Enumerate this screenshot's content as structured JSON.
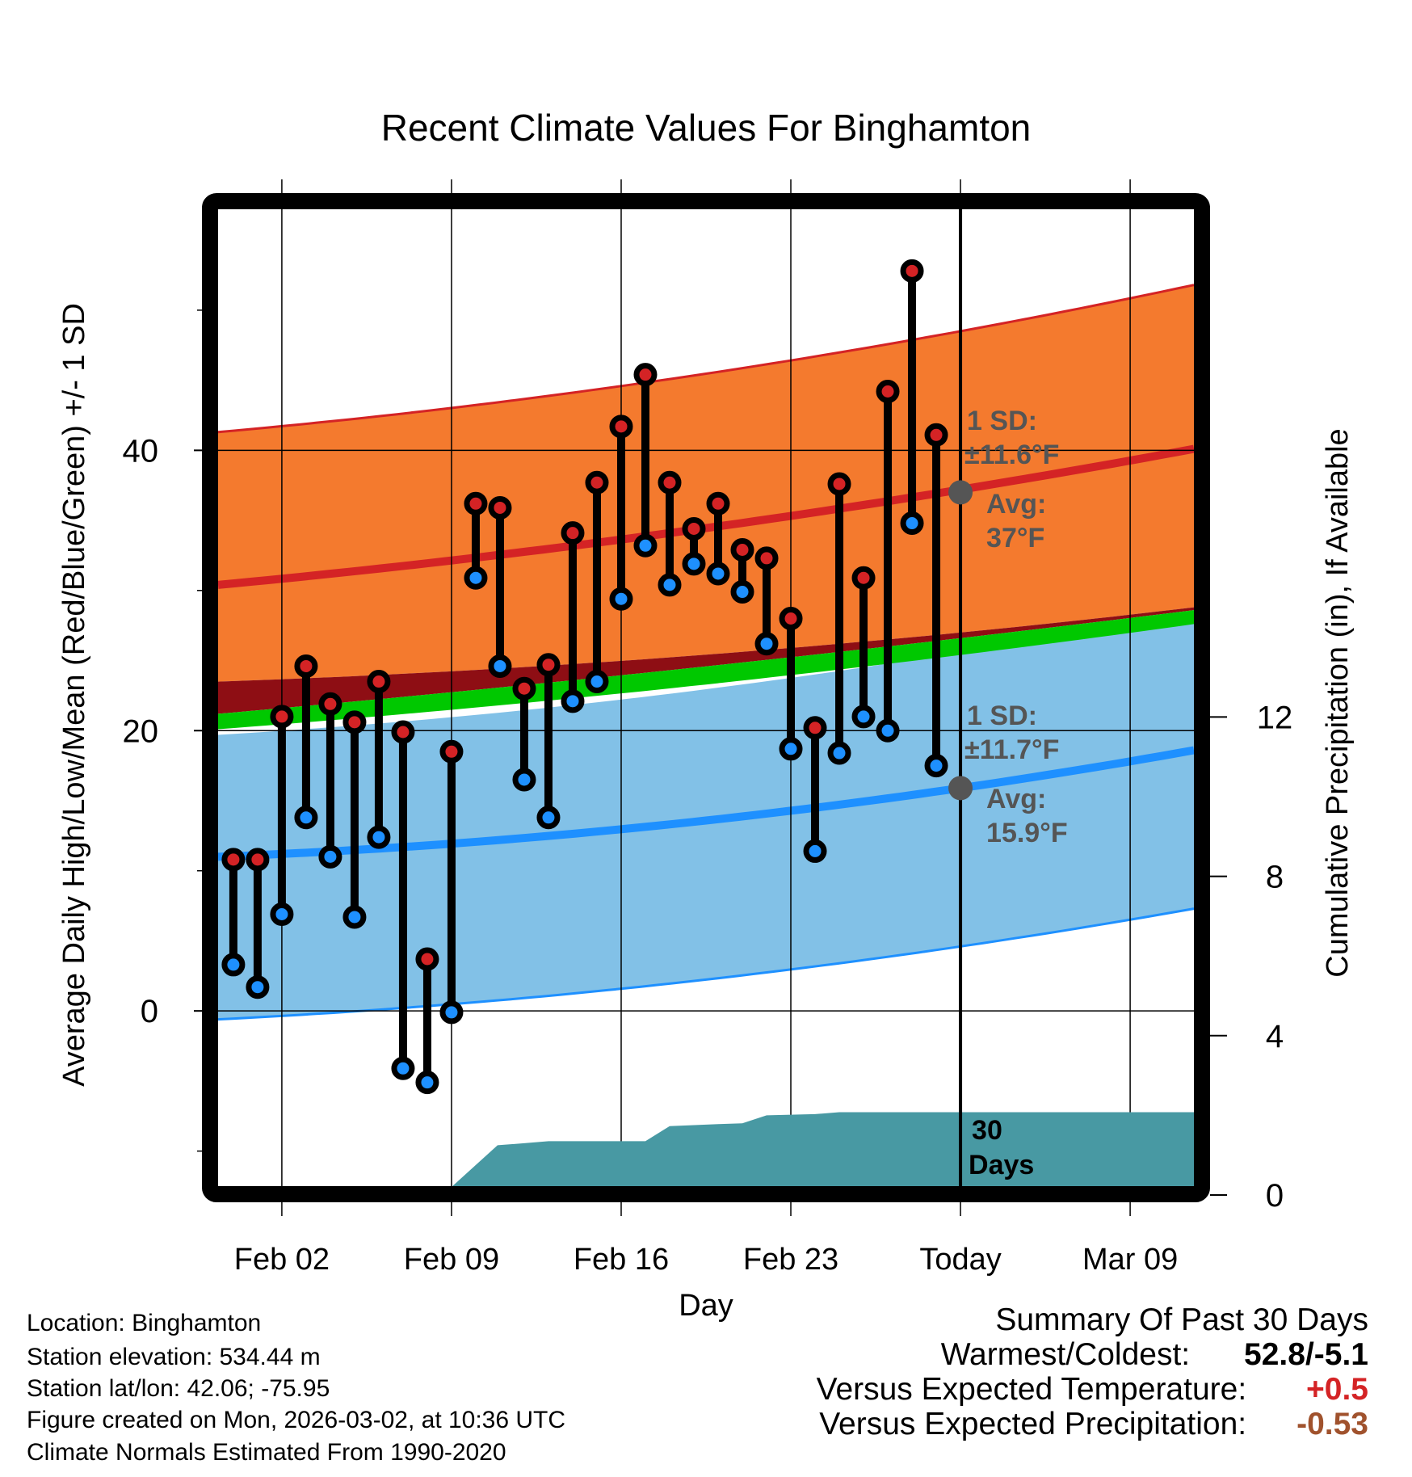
{
  "chart_data": {
    "type": "line",
    "title": "Recent Climate Values For Binghamton",
    "xlabel": "Day",
    "ylabel": "Average Daily High/Low/Mean (Red/Blue/Green) +/- 1 SD",
    "ylabel_right": "Cumulative Precipitation (in), If Available",
    "x_tick_labels": [
      "Feb 02",
      "Feb 09",
      "Feb 16",
      "Feb 23",
      "Today",
      "Mar 09"
    ],
    "x_tick_days": [
      0,
      7,
      14,
      21,
      28,
      35
    ],
    "xlim_days": [
      -2.63,
      37.63
    ],
    "y_ticks": [
      0,
      20,
      40
    ],
    "y_minor_ticks": [
      -10,
      10,
      30,
      50
    ],
    "ylim": [
      -12.5,
      57.2
    ],
    "y2_ticks": [
      0,
      4,
      8,
      12
    ],
    "y2lim": [
      0,
      20
    ],
    "grid": true,
    "today_day": 28,
    "observed": {
      "days": [
        -2,
        -1,
        0,
        1,
        2,
        3,
        4,
        5,
        6,
        7,
        8,
        9,
        10,
        11,
        12,
        13,
        14,
        15,
        16,
        17,
        18,
        19,
        20,
        21,
        22,
        23,
        24,
        25,
        26,
        27
      ],
      "high": [
        10.8,
        10.8,
        21.0,
        24.6,
        21.9,
        20.6,
        23.5,
        19.9,
        3.7,
        18.5,
        36.2,
        35.9,
        23.0,
        24.7,
        34.1,
        37.7,
        41.7,
        45.4,
        37.7,
        34.4,
        36.2,
        32.9,
        32.3,
        28.0,
        20.2,
        37.6,
        30.9,
        44.2,
        52.8,
        41.1
      ],
      "low": [
        3.3,
        1.7,
        6.9,
        13.8,
        11.0,
        6.7,
        12.4,
        -4.1,
        -5.1,
        -0.1,
        30.9,
        24.6,
        16.5,
        13.8,
        22.1,
        23.5,
        29.4,
        33.2,
        30.4,
        31.9,
        31.2,
        29.9,
        26.2,
        18.7,
        11.4,
        18.4,
        21.0,
        20.0,
        34.8,
        17.5
      ]
    },
    "normals": {
      "anchor_days": [
        -2.63,
        28,
        37.63
      ],
      "high_plus_sd": [
        41.3,
        48.5,
        51.8
      ],
      "high_mean": [
        30.4,
        37.2,
        40.1
      ],
      "high_minus_sd": [
        23.5,
        27.0,
        28.8
      ],
      "mean_upper": [
        21.2,
        26.6,
        28.6
      ],
      "mean_lower": [
        20.1,
        25.4,
        27.6
      ],
      "low_plus_sd": [
        19.7,
        25.6,
        28.6
      ],
      "low_mean": [
        11.0,
        15.9,
        18.6
      ],
      "low_minus_sd": [
        -0.6,
        4.6,
        7.3
      ]
    },
    "precip": {
      "days": [
        -2.63,
        6,
        7,
        8.9,
        10,
        11,
        15,
        16,
        18,
        19,
        20,
        22,
        23,
        28,
        37.63
      ],
      "values": [
        0,
        0.05,
        0.2,
        1.25,
        1.3,
        1.35,
        1.35,
        1.73,
        1.78,
        1.8,
        2.0,
        2.03,
        2.08,
        2.08,
        2.08
      ],
      "label": [
        "30",
        "Days"
      ]
    },
    "annotations": {
      "high": {
        "sd_label": "1 SD:",
        "sd_value": "±11.6",
        "avg_label": "Avg:",
        "avg_value": "37",
        "unit": "°F",
        "avg_temp": 37
      },
      "low": {
        "sd_label": "1 SD:",
        "sd_value": "±11.7",
        "avg_label": "Avg:",
        "avg_value": "15.9",
        "unit": "°F",
        "avg_temp": 15.9
      }
    },
    "colors": {
      "high_band": "#f47a2e",
      "high_line": "#d42325",
      "dark_band": "#8e0e14",
      "mean_band": "#00c800",
      "low_band": "#82c1e7",
      "low_line": "#1e90ff",
      "precip": "#4899a3",
      "high_dot": "#d42325",
      "low_dot": "#1e90ff",
      "annot": "#555555"
    }
  },
  "metadata": {
    "location": "Location: Binghamton",
    "elevation": "Station elevation: 534.44 m",
    "latlon": "Station lat/lon: 42.06; -75.95",
    "created": "Figure created on Mon, 2026-03-02, at 10:36 UTC",
    "normals": "Climate Normals Estimated From 1990-2020"
  },
  "summary": {
    "title": "Summary Of Past 30 Days",
    "warmest_coldest_label": "Warmest/Coldest:",
    "warmest_coldest_value": "52.8/-5.1",
    "temp_label": "Versus Expected Temperature:",
    "temp_value": "+0.5",
    "temp_color": "#d42325",
    "precip_label": "Versus Expected Precipitation:",
    "precip_value": "-0.53",
    "precip_color": "#a0522d"
  }
}
